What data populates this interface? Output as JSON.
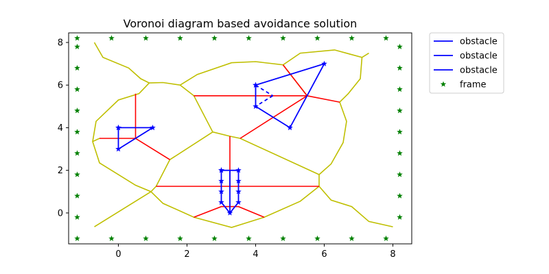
{
  "chart_data": {
    "type": "line",
    "title": "Voronoi diagram based avoidance solution",
    "xlabel": "",
    "ylabel": "",
    "xlim": [
      -1.45,
      8.55
    ],
    "ylim": [
      -1.45,
      8.45
    ],
    "xticks": [
      0,
      2,
      4,
      6,
      8
    ],
    "yticks": [
      0,
      2,
      4,
      6,
      8
    ],
    "grid": false,
    "legend_position": "outside-top-right",
    "legend": [
      {
        "label": "obstacle",
        "kind": "line",
        "color": "#0000ff"
      },
      {
        "label": "obstacle",
        "kind": "line",
        "color": "#0000ff"
      },
      {
        "label": "obstacle",
        "kind": "line",
        "color": "#0000ff"
      },
      {
        "label": "frame",
        "kind": "star",
        "color": "#008000"
      }
    ],
    "colors": {
      "obstacle": "#0000ff",
      "frame": "#008000",
      "voronoi": "#bfbf00",
      "path": "#ff0000"
    },
    "obstacles": [
      {
        "name": "obstacle",
        "points": [
          [
            0,
            4
          ],
          [
            1,
            4
          ],
          [
            0,
            3
          ],
          [
            0,
            4
          ]
        ]
      },
      {
        "name": "obstacle",
        "points": [
          [
            4,
            6
          ],
          [
            6,
            7
          ],
          [
            5,
            4
          ],
          [
            4,
            5
          ],
          [
            4,
            6
          ]
        ],
        "dashed_edges": [
          [
            [
              4,
              6
            ],
            [
              4.5,
              5.5
            ]
          ],
          [
            [
              4.5,
              5.5
            ],
            [
              4,
              5
            ]
          ]
        ]
      },
      {
        "name": "obstacle",
        "points": [
          [
            3,
            2
          ],
          [
            3.5,
            2
          ],
          [
            3.5,
            1.5
          ],
          [
            3.5,
            1
          ],
          [
            3.5,
            0.5
          ],
          [
            3.25,
            0
          ],
          [
            3,
            0.5
          ],
          [
            3,
            1
          ],
          [
            3,
            1.5
          ],
          [
            3,
            2
          ]
        ],
        "vertical_bar": [
          [
            3.25,
            2
          ],
          [
            3.25,
            0
          ]
        ]
      }
    ],
    "frame_points": [
      [
        -1.2,
        8.2
      ],
      [
        -0.2,
        8.2
      ],
      [
        0.8,
        8.2
      ],
      [
        1.8,
        8.2
      ],
      [
        2.8,
        8.2
      ],
      [
        3.8,
        8.2
      ],
      [
        4.8,
        8.2
      ],
      [
        5.8,
        8.2
      ],
      [
        6.8,
        8.2
      ],
      [
        7.8,
        8.2
      ],
      [
        -1.2,
        -1.2
      ],
      [
        -0.2,
        -1.2
      ],
      [
        0.8,
        -1.2
      ],
      [
        1.8,
        -1.2
      ],
      [
        2.8,
        -1.2
      ],
      [
        3.8,
        -1.2
      ],
      [
        4.8,
        -1.2
      ],
      [
        5.8,
        -1.2
      ],
      [
        6.8,
        -1.2
      ],
      [
        7.8,
        -1.2
      ],
      [
        -1.2,
        7.8
      ],
      [
        -1.2,
        6.8
      ],
      [
        -1.2,
        5.8
      ],
      [
        -1.2,
        4.8
      ],
      [
        -1.2,
        3.8
      ],
      [
        -1.2,
        2.8
      ],
      [
        -1.2,
        1.8
      ],
      [
        -1.2,
        0.8
      ],
      [
        -1.2,
        -0.2
      ],
      [
        8.2,
        7.8
      ],
      [
        8.2,
        6.8
      ],
      [
        8.2,
        5.8
      ],
      [
        8.2,
        4.8
      ],
      [
        8.2,
        3.8
      ],
      [
        8.2,
        2.8
      ],
      [
        8.2,
        1.8
      ],
      [
        8.2,
        0.8
      ],
      [
        8.2,
        -0.2
      ]
    ],
    "voronoi_edges": [
      [
        [
          -0.7,
          8.0
        ],
        [
          -0.45,
          7.3
        ],
        [
          0.3,
          6.8
        ],
        [
          0.65,
          6.3
        ],
        [
          0.9,
          6.1
        ]
      ],
      [
        [
          0.9,
          6.1
        ],
        [
          1.3,
          6.12
        ],
        [
          1.8,
          6.0
        ],
        [
          2.3,
          6.5
        ],
        [
          3.3,
          7.05
        ],
        [
          4.0,
          7.1
        ],
        [
          4.8,
          6.95
        ],
        [
          5.3,
          7.5
        ],
        [
          6.3,
          7.65
        ],
        [
          7.1,
          7.3
        ],
        [
          7.3,
          7.5
        ]
      ],
      [
        [
          7.1,
          7.3
        ],
        [
          7.05,
          6.3
        ],
        [
          6.7,
          5.6
        ],
        [
          6.45,
          5.2
        ],
        [
          6.65,
          4.3
        ],
        [
          6.55,
          3.3
        ],
        [
          6.2,
          2.3
        ],
        [
          5.85,
          1.8
        ],
        [
          5.85,
          1.25
        ],
        [
          6.2,
          0.6
        ],
        [
          6.8,
          0.3
        ],
        [
          7.3,
          -0.4
        ],
        [
          8.0,
          -0.65
        ]
      ],
      [
        [
          0.9,
          6.1
        ],
        [
          0.6,
          5.6
        ],
        [
          0.0,
          5.3
        ],
        [
          -0.65,
          4.3
        ],
        [
          -0.75,
          3.35
        ],
        [
          -0.55,
          2.35
        ],
        [
          0.5,
          1.3
        ],
        [
          0.95,
          1.0
        ],
        [
          1.1,
          1.25
        ]
      ],
      [
        [
          -0.75,
          3.35
        ],
        [
          -0.55,
          3.5
        ]
      ],
      [
        [
          0.95,
          1.0
        ],
        [
          1.3,
          0.45
        ],
        [
          2.2,
          -0.2
        ],
        [
          3.3,
          -0.68
        ],
        [
          4.25,
          -0.2
        ],
        [
          5.3,
          0.55
        ],
        [
          5.85,
          1.25
        ]
      ],
      [
        [
          0.95,
          1.0
        ],
        [
          -0.7,
          -0.65
        ]
      ],
      [
        [
          1.8,
          6.0
        ],
        [
          2.2,
          5.5
        ],
        [
          2.75,
          3.8
        ],
        [
          3.25,
          3.6
        ],
        [
          3.55,
          3.5
        ],
        [
          5.85,
          1.8
        ]
      ],
      [
        [
          1.1,
          1.25
        ],
        [
          1.5,
          2.5
        ],
        [
          2.75,
          3.8
        ]
      ],
      [
        [
          4.8,
          6.95
        ],
        [
          5.5,
          5.5
        ]
      ]
    ],
    "path_edges": [
      [
        [
          -0.55,
          3.5
        ],
        [
          0.5,
          3.5
        ]
      ],
      [
        [
          0.5,
          5.6
        ],
        [
          0.5,
          3.5
        ],
        [
          1.5,
          2.5
        ]
      ],
      [
        [
          2.2,
          5.5
        ],
        [
          5.5,
          5.5
        ]
      ],
      [
        [
          4.8,
          6.95
        ],
        [
          5.5,
          5.5
        ],
        [
          3.55,
          3.5
        ]
      ],
      [
        [
          5.5,
          5.5
        ],
        [
          6.45,
          5.2
        ]
      ],
      [
        [
          3.25,
          3.6
        ],
        [
          3.25,
          1.25
        ]
      ],
      [
        [
          1.1,
          1.25
        ],
        [
          5.85,
          1.25
        ]
      ],
      [
        [
          2.2,
          -0.2
        ],
        [
          3.0,
          0.3
        ],
        [
          3.25,
          0.3
        ],
        [
          3.5,
          0.3
        ],
        [
          4.25,
          -0.2
        ]
      ]
    ]
  }
}
